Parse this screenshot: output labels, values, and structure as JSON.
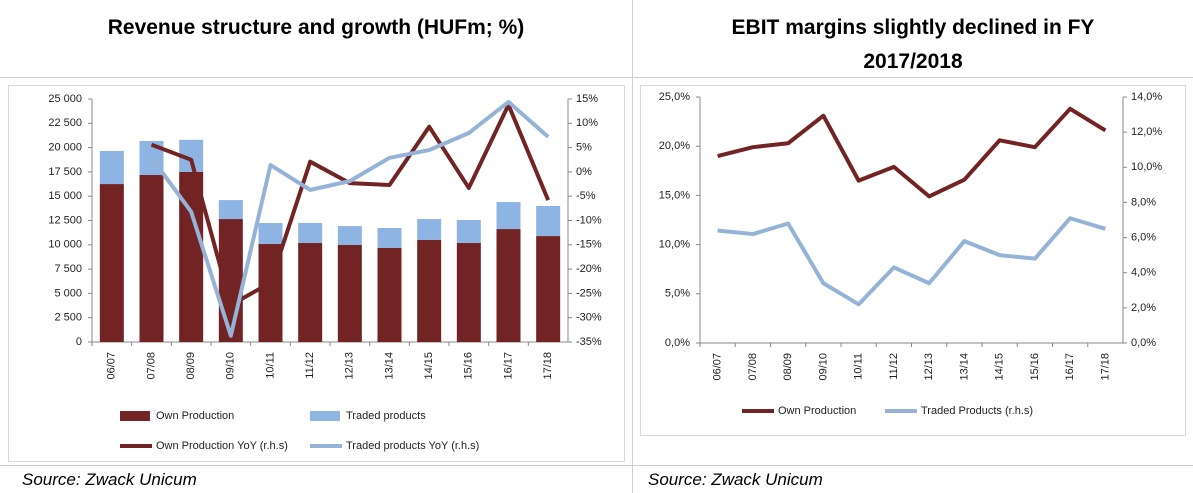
{
  "chart_data": [
    {
      "type": "bar",
      "title": "Revenue structure and growth (HUFm; %)",
      "source": "Source: Zwack Unicum",
      "categories": [
        "06/07",
        "07/08",
        "08/09",
        "09/10",
        "10/11",
        "11/12",
        "12/13",
        "13/14",
        "14/15",
        "15/16",
        "16/17",
        "17/18"
      ],
      "series": [
        {
          "name": "Own Production",
          "type": "bar",
          "color": "#722424",
          "values": [
            16250,
            17180,
            17500,
            12650,
            10080,
            10200,
            9980,
            9670,
            10500,
            10200,
            11620,
            10900
          ]
        },
        {
          "name": "Traded products",
          "type": "bar",
          "color": "#8db4e2",
          "values": [
            3400,
            3500,
            3300,
            1950,
            2160,
            2050,
            1950,
            2060,
            2150,
            2350,
            2780,
            3090
          ]
        },
        {
          "name": "Own Production YoY (r.h.s)",
          "type": "line",
          "axis": "y2",
          "color": "#722424",
          "values": [
            null,
            5.6,
            2.5,
            -27.4,
            -22.8,
            2.1,
            -2.3,
            -2.7,
            9.3,
            -3.3,
            13.8,
            -5.8
          ]
        },
        {
          "name": "Traded products YoY (r.h.s)",
          "type": "line",
          "axis": "y2",
          "color": "#95b3d7",
          "values": [
            null,
            2.9,
            -8.2,
            -33.7,
            1.4,
            -3.7,
            -1.9,
            2.9,
            4.5,
            8.0,
            14.4,
            7.2
          ]
        }
      ],
      "ylim": [
        0,
        25000
      ],
      "yticks": [
        0,
        {
          "value": 2500,
          "label": "2 500"
        },
        {
          "value": 5000,
          "label": "5 000"
        },
        {
          "value": 7500,
          "label": "7 500"
        },
        {
          "value": 10000,
          "label": "10 000"
        },
        {
          "value": 12500,
          "label": "12 500"
        },
        {
          "value": 15000,
          "label": "15 000"
        },
        {
          "value": 17500,
          "label": "17 500"
        },
        {
          "value": 20000,
          "label": "20 000"
        },
        {
          "value": 22500,
          "label": "22 500"
        },
        {
          "value": 25000,
          "label": "25 000"
        }
      ],
      "y2lim": [
        -35,
        15
      ],
      "y2ticks": [
        {
          "value": -35,
          "label": "-35%"
        },
        {
          "value": -30,
          "label": "-30%"
        },
        {
          "value": -25,
          "label": "-25%"
        },
        {
          "value": -20,
          "label": "-20%"
        },
        {
          "value": -15,
          "label": "-15%"
        },
        {
          "value": -10,
          "label": "-10%"
        },
        {
          "value": -5,
          "label": "-5%"
        },
        {
          "value": 0,
          "label": "0%"
        },
        {
          "value": 5,
          "label": "5%"
        },
        {
          "value": 10,
          "label": "10%"
        },
        {
          "value": 15,
          "label": "15%"
        }
      ],
      "grid": false
    },
    {
      "type": "line",
      "title": "EBIT margins slightly declined in FY 2017/2018",
      "source": "Source: Zwack Unicum",
      "categories": [
        "06/07",
        "07/08",
        "08/09",
        "09/10",
        "10/11",
        "11/12",
        "12/13",
        "13/14",
        "14/15",
        "15/16",
        "16/17",
        "17/18"
      ],
      "series": [
        {
          "name": "Own Production",
          "type": "line",
          "color": "#722424",
          "values": [
            19.0,
            19.9,
            20.3,
            23.1,
            16.5,
            17.9,
            14.9,
            16.6,
            20.6,
            19.9,
            23.8,
            21.6
          ]
        },
        {
          "name": "Traded Products (r.h.s)",
          "type": "line",
          "axis": "y2",
          "color": "#95b3d7",
          "values": [
            6.4,
            6.2,
            6.8,
            3.4,
            2.2,
            4.3,
            3.4,
            5.8,
            5.0,
            4.8,
            7.1,
            6.5
          ]
        }
      ],
      "ylim": [
        0,
        25
      ],
      "yticks": [
        {
          "value": 0,
          "label": "0,0%"
        },
        {
          "value": 5,
          "label": "5,0%"
        },
        {
          "value": 10,
          "label": "10,0%"
        },
        {
          "value": 15,
          "label": "15,0%"
        },
        {
          "value": 20,
          "label": "20,0%"
        },
        {
          "value": 25,
          "label": "25,0%"
        }
      ],
      "y2lim": [
        0,
        14
      ],
      "y2ticks": [
        {
          "value": 0,
          "label": "0,0%"
        },
        {
          "value": 2,
          "label": "2,0%"
        },
        {
          "value": 4,
          "label": "4,0%"
        },
        {
          "value": 6,
          "label": "6,0%"
        },
        {
          "value": 8,
          "label": "8,0%"
        },
        {
          "value": 10,
          "label": "10,0%"
        },
        {
          "value": 12,
          "label": "12,0%"
        },
        {
          "value": 14,
          "label": "14,0%"
        }
      ],
      "grid": false
    }
  ]
}
